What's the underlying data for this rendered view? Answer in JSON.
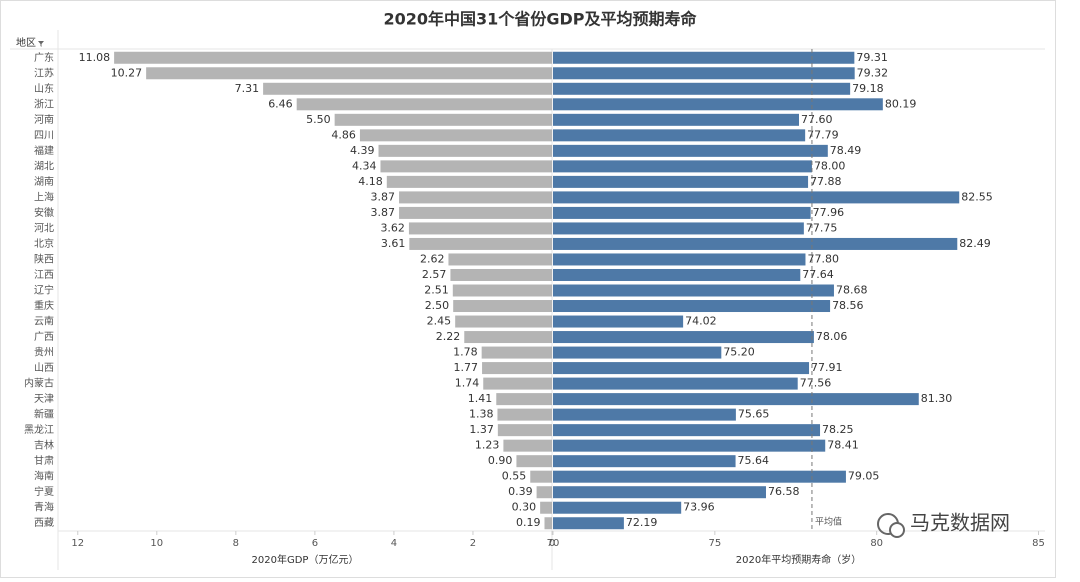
{
  "chart_data": {
    "type": "butterfly_bar",
    "title": "2020年中国31个省份GDP及平均预期寿命",
    "category_header": "地区",
    "categories": [
      "广东",
      "江苏",
      "山东",
      "浙江",
      "河南",
      "四川",
      "福建",
      "湖北",
      "湖南",
      "上海",
      "安徽",
      "河北",
      "北京",
      "陕西",
      "江西",
      "辽宁",
      "重庆",
      "云南",
      "广西",
      "贵州",
      "山西",
      "内蒙古",
      "天津",
      "新疆",
      "黑龙江",
      "吉林",
      "甘肃",
      "海南",
      "宁夏",
      "青海",
      "西藏"
    ],
    "series": [
      {
        "name": "2020年GDP（万亿元）",
        "color": "#b4b4b4",
        "axis": "x",
        "values": [
          11.08,
          10.27,
          7.31,
          6.46,
          5.5,
          4.86,
          4.39,
          4.34,
          4.18,
          3.87,
          3.87,
          3.62,
          3.61,
          2.62,
          2.57,
          2.51,
          2.5,
          2.45,
          2.22,
          1.78,
          1.77,
          1.74,
          1.41,
          1.38,
          1.37,
          1.23,
          0.9,
          0.55,
          0.39,
          0.3,
          0.19
        ],
        "value_labels": [
          "11.08",
          "10.27",
          "7.31",
          "6.46",
          "5.50",
          "4.86",
          "4.39",
          "4.34",
          "4.18",
          "3.87",
          "3.87",
          "3.62",
          "3.61",
          "2.62",
          "2.57",
          "2.51",
          "2.50",
          "2.45",
          "2.22",
          "1.78",
          "1.77",
          "1.74",
          "1.41",
          "1.38",
          "1.37",
          "1.23",
          "0.90",
          "0.55",
          "0.39",
          "0.30",
          "0.19"
        ]
      },
      {
        "name": "2020年平均预期寿命（岁）",
        "color": "#4e79a7",
        "axis": "x2",
        "values": [
          79.31,
          79.32,
          79.18,
          80.19,
          77.6,
          77.79,
          78.49,
          78.0,
          77.88,
          82.55,
          77.96,
          77.75,
          82.49,
          77.8,
          77.64,
          78.68,
          78.56,
          74.02,
          78.06,
          75.2,
          77.91,
          77.56,
          81.3,
          75.65,
          78.25,
          78.41,
          75.64,
          79.05,
          76.58,
          73.96,
          72.19
        ],
        "value_labels": [
          "79.31",
          "79.32",
          "79.18",
          "80.19",
          "77.60",
          "77.79",
          "78.49",
          "78.00",
          "77.88",
          "82.55",
          "77.96",
          "77.75",
          "82.49",
          "77.80",
          "77.64",
          "78.68",
          "78.56",
          "74.02",
          "78.06",
          "75.20",
          "77.91",
          "77.56",
          "81.30",
          "75.65",
          "78.25",
          "78.41",
          "75.64",
          "79.05",
          "76.58",
          "73.96",
          "72.19"
        ]
      }
    ],
    "xlim": [
      0,
      12.5
    ],
    "xticks": [
      12,
      10,
      8,
      6,
      4,
      2,
      0
    ],
    "x_reversed": true,
    "x2lim": [
      70,
      85.2
    ],
    "x2ticks": [
      70,
      75,
      80,
      85
    ],
    "reference_line": {
      "value": 78.0,
      "label": "平均值"
    },
    "watermark": "马克数据网"
  }
}
